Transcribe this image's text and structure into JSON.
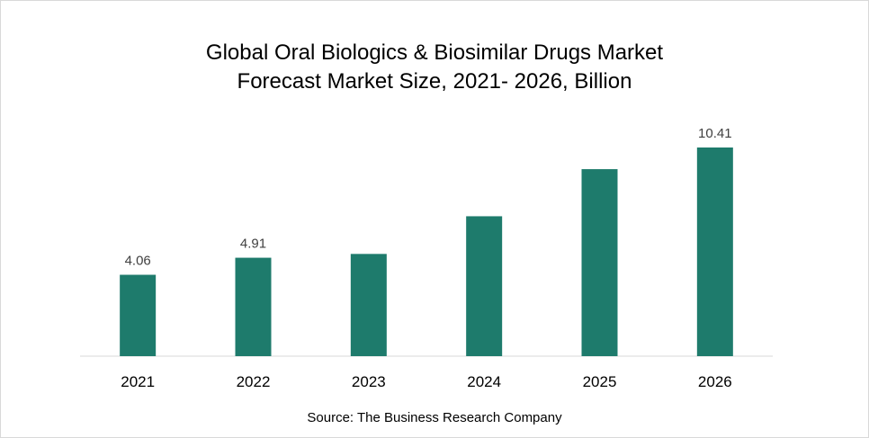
{
  "chart_data": {
    "type": "bar",
    "title_lines": [
      "Global Oral Biologics & Biosimilar Drugs Market",
      "Forecast Market Size, 2021- 2026, Billion"
    ],
    "categories": [
      "2021",
      "2022",
      "2023",
      "2024",
      "2025",
      "2026"
    ],
    "values": [
      4.06,
      4.91,
      5.1,
      6.98,
      9.33,
      10.41
    ],
    "data_labels": [
      "4.06",
      "4.91",
      "",
      "",
      "",
      "10.41"
    ],
    "ylim": [
      0,
      11
    ],
    "bar_color": "#1e7b6c",
    "grid": false,
    "legend": "none",
    "source": "Source: The Business Research Company"
  }
}
